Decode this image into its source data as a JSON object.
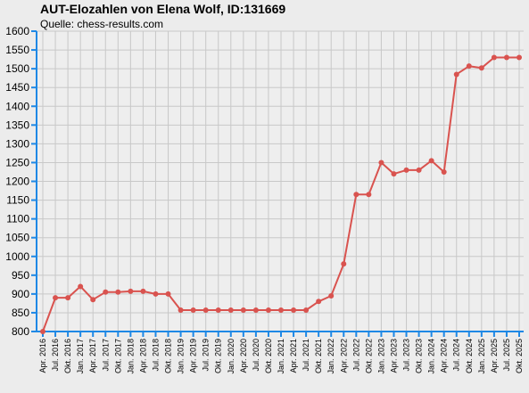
{
  "chart_data": {
    "type": "line",
    "title": "AUT-Elozahlen von Elena Wolf, ID:131669",
    "subtitle": "Quelle: chess-results.com",
    "xlabel": "",
    "ylabel": "",
    "ylim": [
      800,
      1600
    ],
    "yticks": [
      800,
      850,
      900,
      950,
      1000,
      1050,
      1100,
      1150,
      1200,
      1250,
      1300,
      1350,
      1400,
      1450,
      1500,
      1550,
      1600
    ],
    "grid": true,
    "legend": "none",
    "categories": [
      "Apr. 2016",
      "Jul. 2016",
      "Okt. 2016",
      "Jan. 2017",
      "Apr. 2017",
      "Jul. 2017",
      "Okt. 2017",
      "Jan. 2018",
      "Apr. 2018",
      "Jul. 2018",
      "Okt. 2018",
      "Jan. 2019",
      "Apr. 2019",
      "Jul. 2019",
      "Okt. 2019",
      "Jan. 2020",
      "Apr. 2020",
      "Jul. 2020",
      "Okt. 2020",
      "Jan. 2021",
      "Apr. 2021",
      "Jul. 2021",
      "Okt. 2021",
      "Jan. 2022",
      "Apr. 2022",
      "Jul. 2022",
      "Okt. 2022",
      "Jan. 2023",
      "Apr. 2023",
      "Jul. 2023",
      "Okt. 2023",
      "Jan. 2024",
      "Apr. 2024",
      "Jul. 2024",
      "Okt. 2024",
      "Jan. 2025",
      "Apr. 2025",
      "Jul. 2025",
      "Okt. 2025"
    ],
    "series": [
      {
        "values": [
          800,
          890,
          890,
          920,
          885,
          905,
          905,
          907,
          907,
          900,
          900,
          857,
          857,
          857,
          857,
          857,
          857,
          857,
          857,
          857,
          857,
          857,
          880,
          895,
          980,
          1165,
          1165,
          1250,
          1220,
          1230,
          1230,
          1255,
          1225,
          1485,
          1507,
          1502,
          1530,
          1530,
          1530
        ]
      }
    ],
    "colors": {
      "line": "#d9534f",
      "marker": "#d9534f",
      "grid": "#c8c8c8",
      "axis": "#1e88e5",
      "background": "#ececec",
      "plot_background": "#eeeeee"
    }
  }
}
